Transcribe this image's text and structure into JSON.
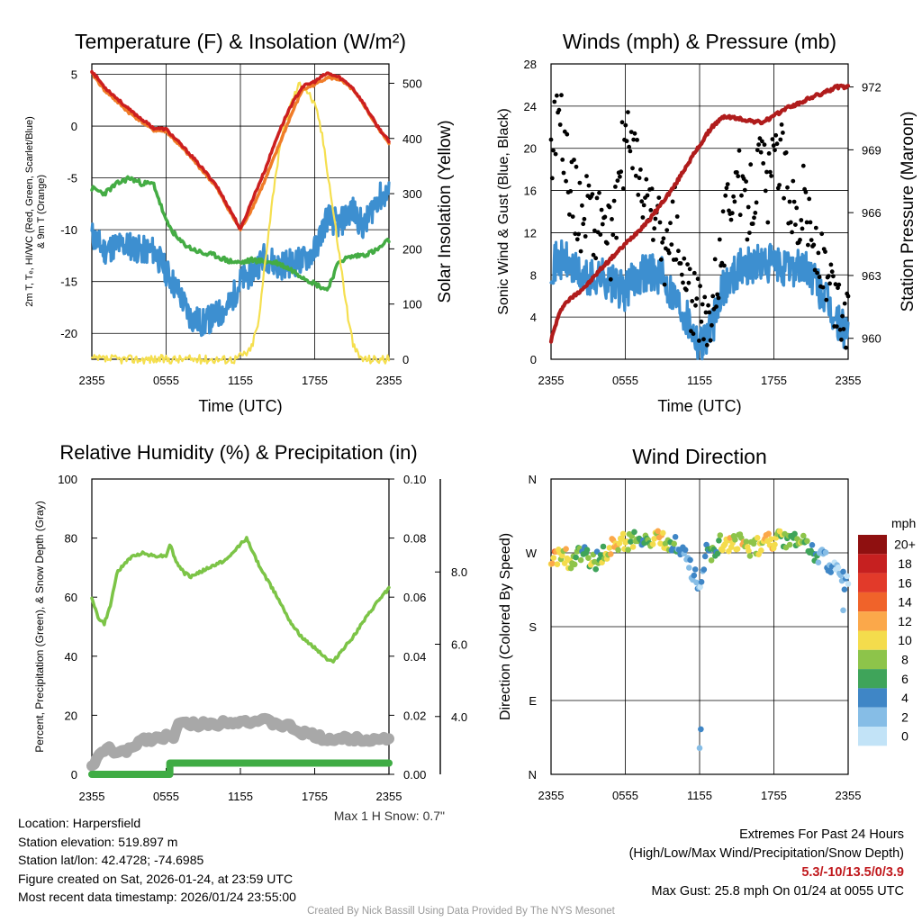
{
  "chart_data": [
    {
      "id": "temp",
      "type": "line",
      "title": "Temperature (F) & Insolation (W/m²)",
      "xlabel": "Time (UTC)",
      "ylabel_lines": [
        "2m T, Tₑ, HI/WC (Red, Green, Scarlet/Blue)",
        "& 9m T (Orange)"
      ],
      "ylabel_right": "Solar Insolation (Yellow)",
      "x_ticks": [
        "2355",
        "0555",
        "1155",
        "1755",
        "2355"
      ],
      "y_ticks": [
        "5",
        "0",
        "-5",
        "-10",
        "-15",
        "-20"
      ],
      "y_right_ticks": [
        "500",
        "400",
        "300",
        "200",
        "100",
        "0"
      ],
      "xlim": [
        0,
        24
      ],
      "ylim": [
        -22.5,
        6
      ],
      "y_right_lim": [
        0,
        535
      ],
      "series": [
        {
          "name": "2m T",
          "color": "#cc1f1f",
          "x": [
            0,
            1,
            3,
            5,
            6,
            8,
            10,
            11.5,
            12,
            13,
            14,
            15,
            16,
            17,
            18,
            19,
            20,
            21,
            22,
            23,
            24
          ],
          "y": [
            5.3,
            3.8,
            1.6,
            -0.2,
            -0.3,
            -2.8,
            -5.6,
            -8.8,
            -10,
            -7,
            -4.2,
            -0.9,
            1.8,
            3.8,
            4.3,
            5.1,
            4.7,
            3.8,
            2.1,
            0.1,
            -1.5
          ]
        },
        {
          "name": "9m T",
          "color": "#f07c28",
          "x": [
            0,
            1,
            3,
            5,
            6,
            8,
            10,
            11.5,
            12,
            13,
            14,
            15,
            16,
            17,
            18,
            19,
            20,
            21,
            22,
            23,
            24
          ],
          "y": [
            5.1,
            3.5,
            1.3,
            -0.4,
            -0.5,
            -3.0,
            -5.8,
            -9.0,
            -10,
            -7.8,
            -5.2,
            -2.2,
            0.8,
            3.5,
            4.0,
            4.7,
            4.5,
            3.6,
            2.0,
            0,
            -1.6
          ]
        },
        {
          "name": "Dewpoint",
          "color": "#44ac44",
          "x": [
            0,
            1,
            2,
            3,
            4,
            5,
            6,
            7,
            8,
            9,
            10,
            11,
            12,
            13,
            14,
            15,
            16,
            17,
            18,
            19,
            20,
            21,
            22,
            23,
            24
          ],
          "y": [
            -6,
            -6.5,
            -5.6,
            -5,
            -5.5,
            -5.6,
            -9.2,
            -11,
            -11.8,
            -12.3,
            -12.5,
            -13,
            -13.2,
            -12.9,
            -13.1,
            -13.2,
            -13.8,
            -14.5,
            -15.2,
            -15.8,
            -13,
            -12.6,
            -12.4,
            -12,
            -11
          ]
        },
        {
          "name": "HI/WC",
          "color": "#3d8fd0",
          "x": [
            0,
            1,
            2,
            3,
            4,
            5,
            6,
            7,
            8,
            9,
            10,
            11,
            12,
            13,
            14,
            15,
            16,
            17,
            18,
            19,
            20,
            21,
            22,
            23,
            24
          ],
          "y": [
            -10.5,
            -12,
            -11.5,
            -11.5,
            -12,
            -12,
            -14,
            -16,
            -18.5,
            -19,
            -18.3,
            -17.5,
            -15,
            -14,
            -12.5,
            -13.5,
            -13.2,
            -13,
            -12,
            -8.8,
            -9.5,
            -8,
            -9.8,
            -7,
            -6.5
          ]
        },
        {
          "name": "Solar",
          "axis": "right",
          "color": "#f5df4f",
          "x": [
            0,
            11.5,
            12.8,
            13.5,
            14,
            14.8,
            15.5,
            16.2,
            16.8,
            17.3,
            17.8,
            18.3,
            18.8,
            19.3,
            19.8,
            20.3,
            20.8,
            21.2,
            21.6,
            22,
            24
          ],
          "y": [
            0,
            0,
            15,
            70,
            180,
            330,
            420,
            470,
            500,
            490,
            470,
            440,
            380,
            300,
            220,
            140,
            60,
            20,
            5,
            0,
            0
          ]
        }
      ]
    },
    {
      "id": "wind",
      "type": "scatter",
      "title": "Winds (mph) & Pressure (mb)",
      "xlabel": "Time (UTC)",
      "ylabel": "Sonic Wind & Gust (Blue, Black)",
      "ylabel_right": "Station Pressure (Maroon)",
      "x_ticks": [
        "2355",
        "0555",
        "1155",
        "1755",
        "2355"
      ],
      "y_ticks": [
        "0",
        "4",
        "8",
        "12",
        "16",
        "20",
        "24",
        "28"
      ],
      "y_right_ticks": [
        "960",
        "963",
        "966",
        "969",
        "972"
      ],
      "xlim": [
        0,
        24
      ],
      "ylim": [
        0,
        28
      ],
      "y_right_lim": [
        959.0,
        973.1
      ],
      "series": [
        {
          "name": "Sonic Wind",
          "color": "#3d8fd0",
          "x": [
            0,
            1,
            2,
            3,
            4,
            5,
            6,
            7,
            8,
            9,
            10,
            11,
            12,
            13,
            14,
            15,
            16,
            17,
            18,
            19,
            20,
            21,
            22,
            23,
            24
          ],
          "y": [
            9,
            9.5,
            8.2,
            7.5,
            8,
            7,
            6.4,
            8,
            8.5,
            7.8,
            6,
            4,
            1.5,
            3,
            7,
            8.5,
            9,
            9,
            9,
            8.5,
            9,
            8,
            6,
            3.5,
            2.5
          ]
        },
        {
          "name": "Gust",
          "color": "#000000",
          "x": [
            0,
            0.5,
            1,
            1.5,
            2,
            2.5,
            3,
            3.5,
            4,
            4.5,
            5,
            5.5,
            6,
            6.5,
            7,
            7.5,
            8,
            8.5,
            9,
            9.5,
            10,
            10.5,
            11,
            11.5,
            12,
            12.5,
            13,
            13.5,
            14,
            14.5,
            15,
            15.5,
            16,
            16.5,
            17,
            17.5,
            18,
            18.5,
            19,
            19.5,
            20,
            20.5,
            21,
            21.5,
            22,
            22.5,
            23,
            23.5,
            24
          ],
          "y": [
            19,
            24,
            21,
            17,
            15,
            13,
            16,
            12,
            14,
            12,
            10,
            18,
            20,
            22,
            17,
            14,
            15,
            13,
            11,
            9,
            13,
            8,
            7,
            5,
            4,
            3,
            6,
            9,
            12,
            16,
            18,
            14,
            15,
            17,
            19,
            16,
            18,
            20,
            17,
            15,
            13,
            16,
            11,
            10,
            8,
            6,
            5,
            4,
            3
          ]
        },
        {
          "name": "Pressure",
          "axis": "right",
          "color": "#b01c1c",
          "x": [
            0,
            0.5,
            1,
            2,
            3,
            4,
            5,
            6,
            7,
            8,
            9,
            10,
            11,
            12,
            13,
            14,
            15,
            16,
            17,
            18,
            19,
            20,
            21,
            22,
            23,
            23.5,
            24
          ],
          "y": [
            959.9,
            960.9,
            961.6,
            962.1,
            962.6,
            963.3,
            963.9,
            964.5,
            965.1,
            965.7,
            966.5,
            967.3,
            968.3,
            969.2,
            970.1,
            970.6,
            970.5,
            970.4,
            970.3,
            970.6,
            971.0,
            971.2,
            971.5,
            971.7,
            972.0,
            972.0,
            972.0
          ]
        }
      ]
    },
    {
      "id": "rh",
      "type": "line",
      "title": "Relative Humidity (%) & Precipitation (in)",
      "ylabel": "Percent, Precipitation (Green), & Snow Depth (Gray)",
      "x_ticks": [
        "2355",
        "0555",
        "1155",
        "1755",
        "2355"
      ],
      "y_ticks": [
        "0",
        "20",
        "40",
        "60",
        "80",
        "100"
      ],
      "y_right_ticks": [
        "0.00",
        "0.02",
        "0.04",
        "0.06",
        "0.08",
        "0.10"
      ],
      "snow_ticks": [
        "4.0",
        "6.0",
        "8.0"
      ],
      "xlim": [
        0,
        24
      ],
      "ylim": [
        0,
        100
      ],
      "y_right_lim": [
        0,
        0.1
      ],
      "note": "Max 1 H Snow: 0.7\"",
      "series": [
        {
          "name": "RH",
          "color": "#7cc447",
          "x": [
            0,
            0.5,
            1,
            1.5,
            2,
            3,
            4,
            5,
            6,
            6.3,
            6.8,
            7.5,
            8,
            9,
            10,
            11,
            12,
            12.5,
            13,
            14,
            15,
            16,
            17,
            18,
            19,
            19.5,
            20,
            21,
            22,
            23,
            24
          ],
          "y": [
            60,
            53,
            51,
            57,
            68,
            73,
            75,
            74,
            74,
            78,
            72,
            68,
            67,
            69,
            71,
            73,
            78,
            80,
            75,
            67,
            60,
            52,
            46,
            43,
            39,
            38,
            41,
            46,
            52,
            58,
            63
          ]
        },
        {
          "name": "Precipitation",
          "axis": "right",
          "color": "#3fac44",
          "x": [
            0,
            6.3,
            6.3,
            24
          ],
          "y": [
            0,
            0,
            0.0038,
            0.0038
          ]
        },
        {
          "name": "Snow Depth",
          "color": "#a8a8a8",
          "x": [
            0,
            1,
            1.5,
            2,
            3,
            4,
            5,
            6,
            6.5,
            7,
            8,
            9,
            10,
            11,
            12,
            13,
            14,
            15,
            16,
            17,
            18,
            19,
            20,
            21,
            22,
            23,
            24
          ],
          "y": [
            3,
            8,
            9,
            7,
            8,
            12,
            12,
            13,
            12,
            17,
            17,
            17,
            17,
            18,
            18,
            18,
            18,
            17,
            16,
            14,
            13,
            12,
            12,
            12,
            12,
            12,
            12
          ]
        }
      ]
    },
    {
      "id": "dir",
      "type": "scatter",
      "title": "Wind Direction",
      "ylabel": "Direction (Colored By Speed)",
      "x_ticks": [
        "2355",
        "0555",
        "1155",
        "1755",
        "2355"
      ],
      "y_ticks": [
        "N",
        "W",
        "S",
        "E",
        "N"
      ],
      "xlim": [
        0,
        24
      ],
      "ylim": [
        0,
        360
      ],
      "legend_title": "mph",
      "legend_labels": [
        "20+",
        "18",
        "16",
        "14",
        "12",
        "10",
        "8",
        "6",
        "4",
        "2",
        "0"
      ],
      "legend_colors": [
        "#8f1010",
        "#c62020",
        "#e23a2a",
        "#f0632a",
        "#fba84a",
        "#f4dc4c",
        "#8dc44a",
        "#3fa45a",
        "#3f86c6",
        "#86bde6",
        "#c2e3f7"
      ],
      "points": {
        "t": [
          0,
          0.4,
          0.8,
          1.2,
          1.6,
          2,
          2.4,
          2.8,
          3.2,
          3.6,
          4,
          4.4,
          5,
          5.5,
          6,
          6.5,
          7,
          7.5,
          8,
          8.5,
          9,
          9.5,
          10,
          10.5,
          11,
          11.3,
          11.6,
          12,
          12.3,
          12.6,
          13,
          13.5,
          14,
          14.5,
          15,
          15.5,
          16,
          16.5,
          17,
          17.5,
          18,
          18.5,
          19,
          19.5,
          20,
          20.5,
          21,
          21.5,
          22,
          22.5,
          23,
          23.5,
          24
        ],
        "dir": [
          265,
          262,
          268,
          266,
          258,
          263,
          270,
          267,
          255,
          260,
          265,
          270,
          282,
          285,
          283,
          286,
          284,
          281,
          283,
          287,
          285,
          283,
          282,
          276,
          260,
          250,
          245,
          230,
          240,
          275,
          265,
          280,
          283,
          281,
          285,
          279,
          275,
          278,
          280,
          283,
          281,
          287,
          285,
          283,
          282,
          280,
          276,
          268,
          262,
          258,
          250,
          240,
          230
        ],
        "spd": [
          10,
          12,
          8,
          11,
          9,
          6,
          7,
          5,
          8,
          6,
          7,
          9,
          10,
          11,
          9,
          8,
          7,
          6,
          9,
          10,
          11,
          8,
          5,
          3,
          2,
          4,
          3,
          2,
          3,
          5,
          6,
          7,
          9,
          10,
          8,
          11,
          9,
          7,
          10,
          12,
          9,
          8,
          7,
          6,
          9,
          8,
          5,
          4,
          3,
          3,
          2,
          2,
          1
        ]
      }
    }
  ],
  "info": {
    "location": "Location: Harpersfield",
    "elevation": "Station elevation: 519.897 m",
    "latlon": "Station lat/lon: 42.4728; -74.6985",
    "created": "Figure created on Sat, 2026-01-24, at 23:59 UTC",
    "recent": "Most recent data timestamp: 2026/01/24 23:55:00"
  },
  "extremes": {
    "title": "Extremes For Past 24 Hours",
    "subtitle": "(High/Low/Max Wind/Precipitation/Snow Depth)",
    "values": "5.3/-10/13.5/0/3.9",
    "gust": "Max Gust: 25.8 mph On 01/24 at 0055 UTC"
  },
  "credit": "Created By Nick Bassill Using Data Provided By The NYS Mesonet"
}
